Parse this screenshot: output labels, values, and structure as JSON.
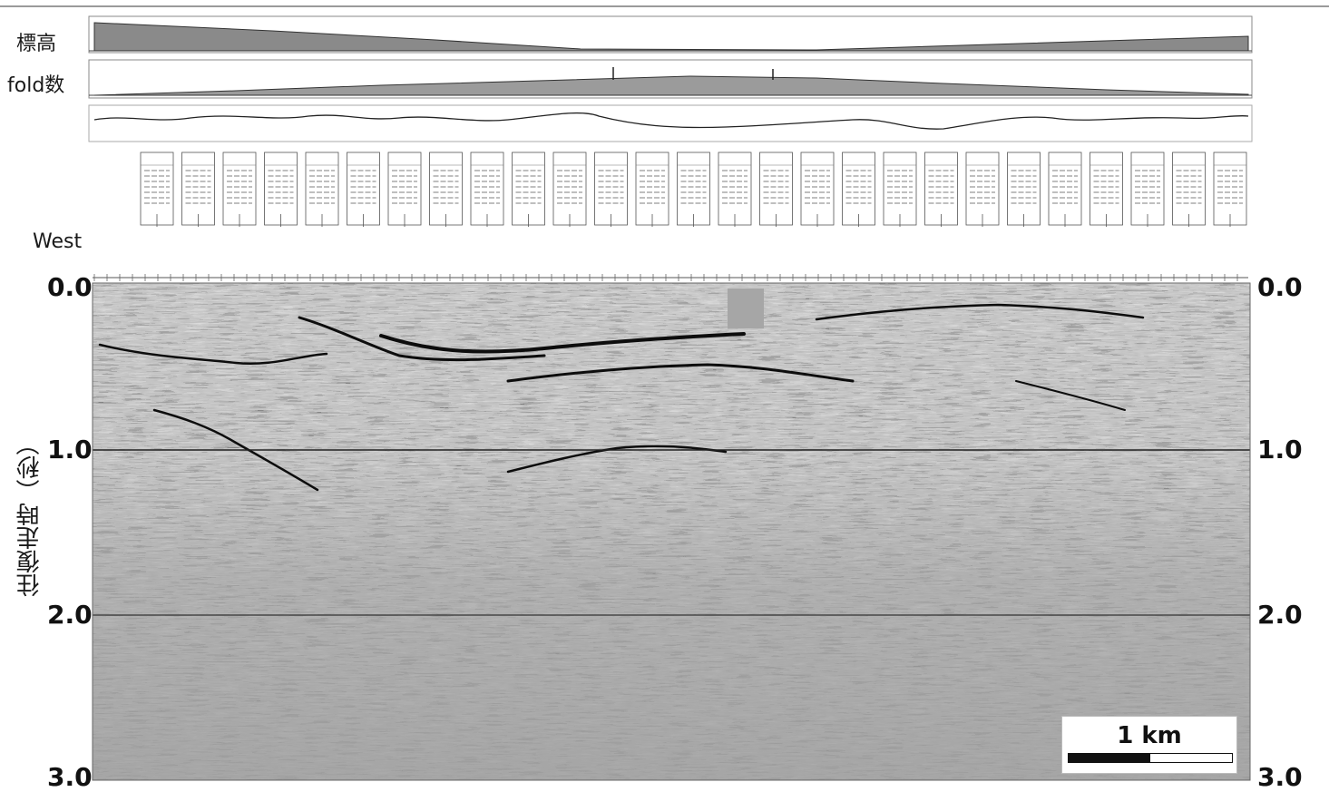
{
  "labels": {
    "elevation": "標高",
    "fold": "fold数",
    "west": "West",
    "y_axis_title": "往復走時（秒）"
  },
  "axis": {
    "left_ticks": [
      "0.0",
      "1.0",
      "2.0",
      "3.0"
    ],
    "right_ticks": [
      "0.0",
      "1.0",
      "2.0",
      "3.0"
    ]
  },
  "scale_bar": {
    "label": "1 km"
  },
  "colors": {
    "background": "#ffffff",
    "section_base": "#9a9a9a",
    "reflector": "#111111",
    "gridline": "#222222"
  }
}
